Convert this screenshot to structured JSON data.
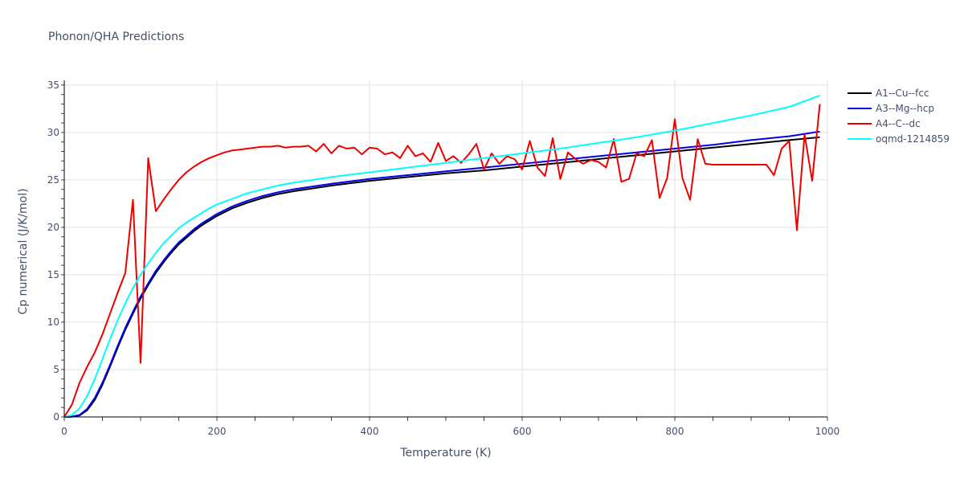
{
  "chart_data": {
    "type": "line",
    "title": "Phonon/QHA Predictions",
    "xlabel": "Temperature (K)",
    "ylabel": "Cp numerical (J/K/mol)",
    "xlim": [
      0,
      1000
    ],
    "ylim": [
      0,
      35.5
    ],
    "xticks": [
      0,
      200,
      400,
      600,
      800,
      1000
    ],
    "yticks": [
      0,
      5,
      10,
      15,
      20,
      25,
      30,
      35
    ],
    "grid": true,
    "legend_position": "top-right-outside",
    "series": [
      {
        "name": "A1--Cu--fcc",
        "color": "#000000",
        "x": [
          0,
          10,
          20,
          30,
          40,
          50,
          60,
          70,
          80,
          90,
          100,
          110,
          120,
          130,
          140,
          150,
          160,
          170,
          180,
          190,
          200,
          220,
          240,
          260,
          280,
          300,
          350,
          400,
          450,
          500,
          550,
          600,
          650,
          700,
          750,
          800,
          850,
          900,
          950,
          990
        ],
        "y": [
          0,
          0.02,
          0.15,
          0.7,
          1.8,
          3.4,
          5.3,
          7.3,
          9.2,
          10.9,
          12.5,
          13.9,
          15.2,
          16.3,
          17.3,
          18.2,
          18.9,
          19.6,
          20.2,
          20.7,
          21.2,
          22.0,
          22.6,
          23.1,
          23.5,
          23.8,
          24.4,
          24.9,
          25.3,
          25.7,
          26.0,
          26.4,
          26.8,
          27.2,
          27.6,
          28.0,
          28.4,
          28.8,
          29.2,
          29.5
        ]
      },
      {
        "name": "A3--Mg--hcp",
        "color": "#0000ee",
        "x": [
          0,
          10,
          20,
          30,
          40,
          50,
          60,
          70,
          80,
          90,
          100,
          110,
          120,
          130,
          140,
          150,
          160,
          170,
          180,
          190,
          200,
          220,
          240,
          260,
          280,
          300,
          350,
          400,
          450,
          500,
          550,
          600,
          650,
          700,
          750,
          800,
          850,
          900,
          950,
          990
        ],
        "y": [
          0,
          0.03,
          0.2,
          0.85,
          2.0,
          3.6,
          5.5,
          7.5,
          9.4,
          11.1,
          12.7,
          14.1,
          15.4,
          16.5,
          17.5,
          18.4,
          19.1,
          19.8,
          20.4,
          20.9,
          21.4,
          22.2,
          22.8,
          23.3,
          23.7,
          24.0,
          24.6,
          25.1,
          25.5,
          25.9,
          26.3,
          26.7,
          27.1,
          27.5,
          27.9,
          28.3,
          28.7,
          29.2,
          29.6,
          30.1
        ]
      },
      {
        "name": "A4--C--dc",
        "color": "#ee0000",
        "x": [
          0,
          10,
          20,
          30,
          40,
          50,
          60,
          70,
          80,
          90,
          100,
          110,
          120,
          130,
          140,
          150,
          160,
          170,
          180,
          190,
          200,
          210,
          220,
          230,
          240,
          250,
          260,
          270,
          280,
          290,
          300,
          310,
          320,
          330,
          340,
          350,
          360,
          370,
          380,
          390,
          400,
          410,
          420,
          430,
          440,
          450,
          460,
          470,
          480,
          490,
          500,
          510,
          520,
          530,
          540,
          550,
          560,
          570,
          580,
          590,
          600,
          610,
          620,
          630,
          640,
          650,
          660,
          670,
          680,
          690,
          700,
          710,
          720,
          730,
          740,
          750,
          760,
          770,
          780,
          790,
          800,
          810,
          820,
          830,
          840,
          850,
          920,
          930,
          940,
          950,
          960,
          970,
          980,
          990
        ],
        "y": [
          0,
          1.3,
          3.6,
          5.3,
          6.8,
          8.7,
          10.9,
          13.1,
          15.2,
          22.9,
          5.7,
          27.3,
          21.7,
          22.9,
          24.0,
          25.0,
          25.8,
          26.4,
          26.9,
          27.3,
          27.6,
          27.9,
          28.1,
          28.2,
          28.3,
          28.4,
          28.5,
          28.5,
          28.6,
          28.4,
          28.5,
          28.5,
          28.6,
          28.0,
          28.8,
          27.8,
          28.6,
          28.3,
          28.4,
          27.7,
          28.4,
          28.3,
          27.7,
          27.9,
          27.3,
          28.6,
          27.5,
          27.8,
          26.9,
          28.9,
          27.0,
          27.5,
          26.8,
          27.7,
          28.8,
          26.1,
          27.8,
          26.7,
          27.5,
          27.2,
          26.1,
          29.1,
          26.3,
          25.4,
          29.4,
          25.1,
          27.9,
          27.2,
          26.7,
          27.1,
          26.9,
          26.3,
          29.3,
          24.8,
          25.1,
          27.8,
          27.5,
          29.2,
          23.1,
          25.2,
          31.4,
          25.2,
          22.9,
          29.3,
          26.7,
          26.6,
          26.6,
          25.5,
          28.3,
          29.1,
          19.7,
          29.8,
          24.9,
          33.0
        ]
      },
      {
        "name": "oqmd-1214859",
        "color": "#00ffff",
        "x": [
          0,
          10,
          20,
          30,
          40,
          50,
          60,
          70,
          80,
          90,
          100,
          110,
          120,
          130,
          140,
          150,
          160,
          170,
          180,
          190,
          200,
          220,
          240,
          260,
          280,
          300,
          350,
          400,
          450,
          500,
          550,
          600,
          650,
          700,
          750,
          800,
          850,
          900,
          950,
          990
        ],
        "y": [
          0,
          0.2,
          0.9,
          2.2,
          4.0,
          6.1,
          8.2,
          10.2,
          12.0,
          13.6,
          15.0,
          16.2,
          17.3,
          18.3,
          19.1,
          19.9,
          20.5,
          21.0,
          21.5,
          22.0,
          22.4,
          23.0,
          23.6,
          24.0,
          24.4,
          24.7,
          25.3,
          25.8,
          26.3,
          26.8,
          27.3,
          27.8,
          28.3,
          28.9,
          29.5,
          30.2,
          31.0,
          31.8,
          32.7,
          33.9
        ]
      }
    ]
  }
}
